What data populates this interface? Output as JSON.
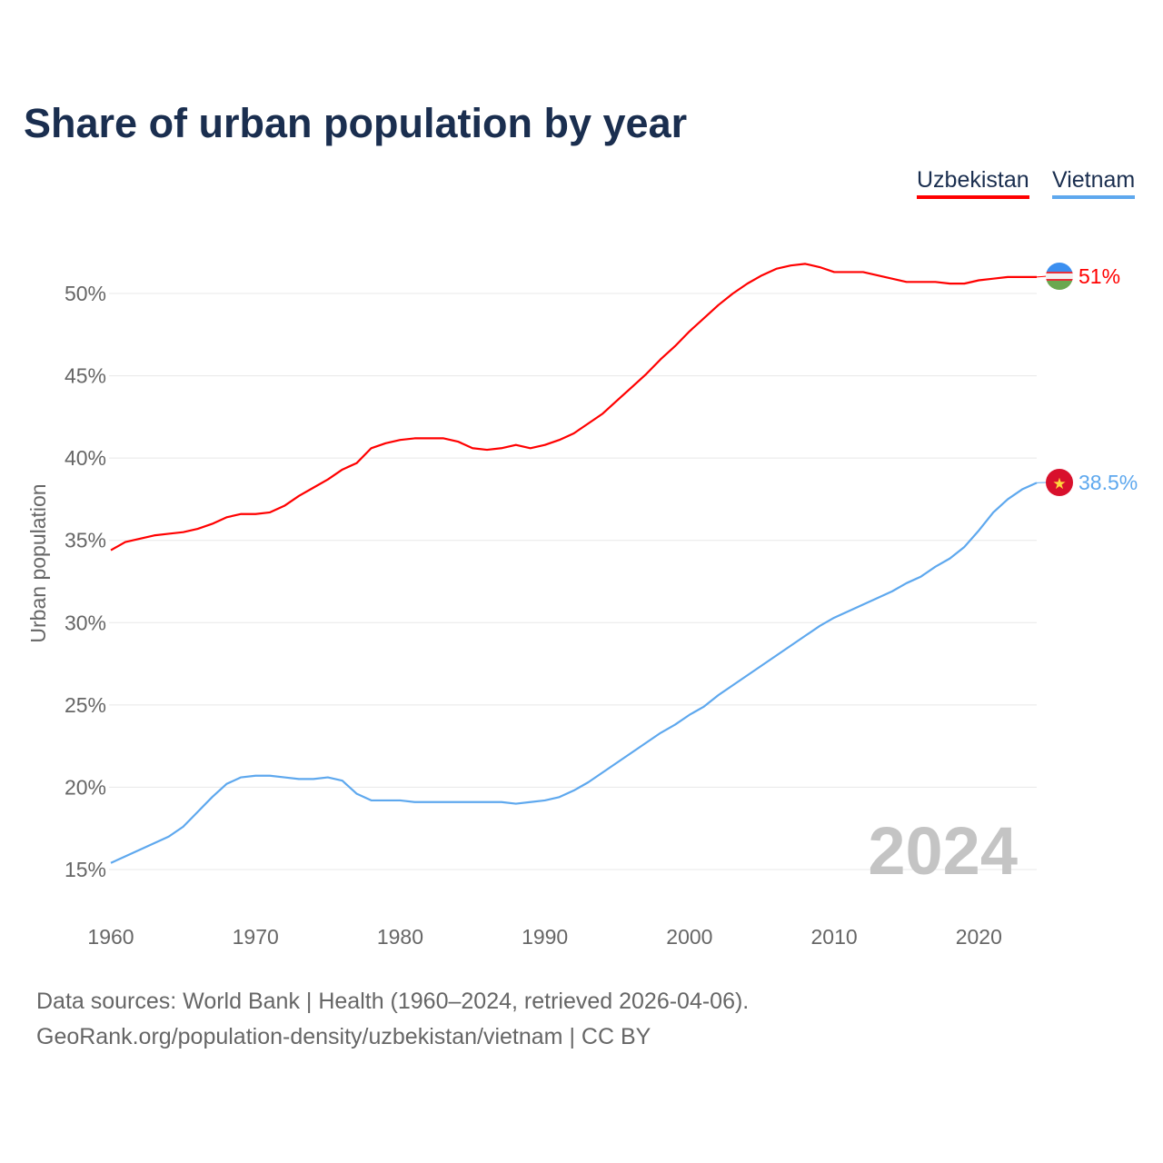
{
  "title": "Share of urban population by year",
  "legend": [
    {
      "label": "Uzbekistan",
      "color": "#ff0000"
    },
    {
      "label": "Vietnam",
      "color": "#5ea8ee"
    }
  ],
  "footer": {
    "line1": "Data sources: World Bank | Health (1960–2024, retrieved 2026-04-06).",
    "line2": "GeoRank.org/population-density/uzbekistan/vietnam | CC BY"
  },
  "chart_data": {
    "type": "line",
    "title": "Share of urban population by year",
    "xlabel": "",
    "ylabel": "Urban population",
    "xlim": [
      1960,
      2024
    ],
    "ylim": [
      13,
      53
    ],
    "x_ticks": [
      1960,
      1970,
      1980,
      1990,
      2000,
      2010,
      2020
    ],
    "y_ticks": [
      15,
      20,
      25,
      30,
      35,
      40,
      45,
      50
    ],
    "y_tick_labels": [
      "15%",
      "20%",
      "25%",
      "30%",
      "35%",
      "40%",
      "45%",
      "50%"
    ],
    "grid": true,
    "legend_position": "top-right",
    "watermark_year": "2024",
    "x": [
      1960,
      1961,
      1962,
      1963,
      1964,
      1965,
      1966,
      1967,
      1968,
      1969,
      1970,
      1971,
      1972,
      1973,
      1974,
      1975,
      1976,
      1977,
      1978,
      1979,
      1980,
      1981,
      1982,
      1983,
      1984,
      1985,
      1986,
      1987,
      1988,
      1989,
      1990,
      1991,
      1992,
      1993,
      1994,
      1995,
      1996,
      1997,
      1998,
      1999,
      2000,
      2001,
      2002,
      2003,
      2004,
      2005,
      2006,
      2007,
      2008,
      2009,
      2010,
      2011,
      2012,
      2013,
      2014,
      2015,
      2016,
      2017,
      2018,
      2019,
      2020,
      2021,
      2022,
      2023,
      2024
    ],
    "series": [
      {
        "name": "Uzbekistan",
        "color": "#ff0000",
        "end_label": "51%",
        "values": [
          34.4,
          34.9,
          35.1,
          35.3,
          35.4,
          35.5,
          35.7,
          36.0,
          36.4,
          36.6,
          36.6,
          36.7,
          37.1,
          37.7,
          38.2,
          38.7,
          39.3,
          39.7,
          40.6,
          40.9,
          41.1,
          41.2,
          41.2,
          41.2,
          41.0,
          40.6,
          40.5,
          40.6,
          40.8,
          40.6,
          40.8,
          41.1,
          41.5,
          42.1,
          42.7,
          43.5,
          44.3,
          45.1,
          46.0,
          46.8,
          47.7,
          48.5,
          49.3,
          50.0,
          50.6,
          51.1,
          51.5,
          51.7,
          51.8,
          51.6,
          51.3,
          51.3,
          51.3,
          51.1,
          50.9,
          50.7,
          50.7,
          50.7,
          50.6,
          50.6,
          50.8,
          50.9,
          51.0,
          51.0,
          51.0
        ]
      },
      {
        "name": "Vietnam",
        "color": "#5ea8ee",
        "end_label": "38.5%",
        "values": [
          15.4,
          15.8,
          16.2,
          16.6,
          17.0,
          17.6,
          18.5,
          19.4,
          20.2,
          20.6,
          20.7,
          20.7,
          20.6,
          20.5,
          20.5,
          20.6,
          20.4,
          19.6,
          19.2,
          19.2,
          19.2,
          19.1,
          19.1,
          19.1,
          19.1,
          19.1,
          19.1,
          19.1,
          19.0,
          19.1,
          19.2,
          19.4,
          19.8,
          20.3,
          20.9,
          21.5,
          22.1,
          22.7,
          23.3,
          23.8,
          24.4,
          24.9,
          25.6,
          26.2,
          26.8,
          27.4,
          28.0,
          28.6,
          29.2,
          29.8,
          30.3,
          30.7,
          31.1,
          31.5,
          31.9,
          32.4,
          32.8,
          33.4,
          33.9,
          34.6,
          35.6,
          36.7,
          37.5,
          38.1,
          38.5
        ]
      }
    ]
  }
}
